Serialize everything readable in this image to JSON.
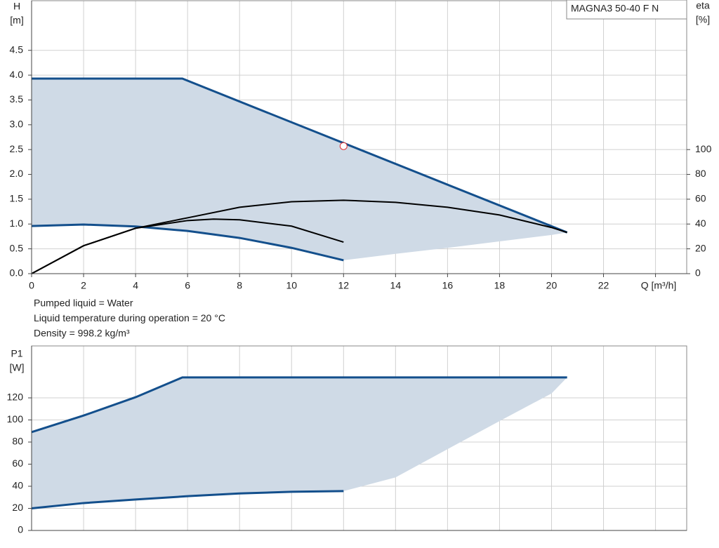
{
  "chart_data": [
    {
      "type": "line",
      "label": "MAGNA3 50-40 F N",
      "y_label": "H",
      "y_unit": "[m]",
      "y2_label": "eta",
      "y2_unit": "[%]",
      "x_label": "Q [m³/h]",
      "xlim": [
        0,
        25.2
      ],
      "xticks": [
        0,
        2,
        4,
        6,
        8,
        10,
        12,
        14,
        16,
        18,
        20,
        22,
        24
      ],
      "ylim": [
        0,
        5.5
      ],
      "yticks": [
        {
          "value": 0,
          "label": "0.0"
        },
        0.5,
        {
          "value": 1,
          "label": "1.0"
        },
        1.5,
        {
          "value": 2,
          "label": "2.0"
        },
        2.5,
        {
          "value": 3,
          "label": "3.0"
        },
        3.5,
        {
          "value": 4,
          "label": "4.0"
        },
        4.5
      ],
      "y2lim": [
        0,
        220
      ],
      "y2ticks": [
        0,
        20,
        40,
        60,
        80,
        100
      ],
      "grid": true,
      "range": {
        "color": "#cfdae6",
        "x": [
          0,
          5.8,
          20.6,
          20,
          18,
          16,
          14,
          12,
          12,
          10,
          8,
          6,
          4,
          2,
          0
        ],
        "values": [
          3.93,
          3.93,
          0.83,
          0.78,
          0.65,
          0.52,
          0.4,
          0.27,
          0.27,
          0.52,
          0.72,
          0.86,
          0.95,
          0.99,
          0.96
        ]
      },
      "series": [
        {
          "color": "#134f8c",
          "x": [
            0,
            5.8,
            20.6
          ],
          "values": [
            3.93,
            3.93,
            0.83
          ]
        },
        {
          "color": "#134f8c",
          "x": [
            0,
            2,
            4,
            6,
            8,
            10,
            12
          ],
          "values": [
            0.96,
            0.99,
            0.95,
            0.86,
            0.72,
            0.52,
            0.27
          ]
        },
        {
          "color": "#000000",
          "axis": "y2",
          "x": [
            0,
            2,
            4,
            6,
            8,
            10,
            12,
            14,
            16,
            18,
            20,
            20.6
          ],
          "values": [
            0,
            22.5,
            36.6,
            45,
            53.5,
            58,
            59.2,
            57.5,
            53.5,
            47.3,
            37.2,
            33.2
          ]
        },
        {
          "color": "#000000",
          "axis": "y2",
          "x": [
            0,
            2,
            4,
            6,
            7,
            8,
            10,
            12
          ],
          "values": [
            0,
            22.5,
            36.6,
            42.8,
            44,
            43.4,
            38.3,
            25.4
          ]
        }
      ],
      "markers": [
        {
          "x": 12,
          "y": 2.57,
          "color": "#e03030"
        }
      ],
      "notes": [
        "Pumped liquid = Water",
        "Liquid temperature during operation = 20 °C",
        "Density = 998.2 kg/m³"
      ]
    },
    {
      "type": "line",
      "y_label": "P1",
      "y_unit": "[W]",
      "xlim": [
        0,
        25.2
      ],
      "xticks": [
        0,
        2,
        4,
        6,
        8,
        10,
        12,
        14,
        16,
        18,
        20,
        22,
        24
      ],
      "ylim": [
        0,
        167
      ],
      "yticks": [
        0,
        20,
        40,
        60,
        80,
        100,
        120
      ],
      "grid": true,
      "range": {
        "color": "#cfdae6",
        "x": [
          0,
          2,
          4,
          5.8,
          20.6,
          20,
          18,
          16,
          14,
          12,
          12,
          10,
          8,
          6,
          4,
          2,
          0
        ],
        "values": [
          89,
          104,
          120.6,
          138.5,
          138.5,
          124,
          99,
          73.6,
          48,
          35.6,
          35.6,
          35,
          33.5,
          31,
          28,
          24.8,
          20
        ]
      },
      "series": [
        {
          "color": "#134f8c",
          "x": [
            0,
            2,
            4,
            5.8,
            20.6
          ],
          "values": [
            89,
            104,
            120.6,
            138.5,
            138.5
          ]
        },
        {
          "color": "#134f8c",
          "x": [
            0,
            2,
            4,
            6,
            8,
            10,
            12
          ],
          "values": [
            20,
            24.8,
            28,
            31,
            33.5,
            35,
            35.6
          ]
        }
      ]
    }
  ]
}
